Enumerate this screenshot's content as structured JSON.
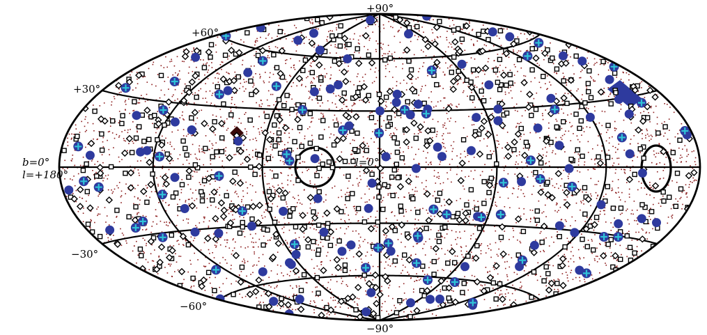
{
  "map": {
    "projection": "Hammer-Aitoff",
    "coordinate_system": "galactic",
    "latitude_labels": [
      "+90°",
      "+60°",
      "+30°",
      "−30°",
      "−60°",
      "−90°"
    ],
    "equator_label_b": "b=0°",
    "equator_label_l": "l=+180°",
    "center_label": "l=0°",
    "meridians_longitude_deg": [
      -180,
      -120,
      -60,
      0,
      60,
      120,
      180
    ],
    "parallels_latitude_deg": [
      -60,
      -30,
      0,
      30,
      60
    ],
    "colors": {
      "background_dots": "#8b1a1a",
      "grid": "#000000",
      "filled_marker": "#2e3a9e",
      "cross_marker": "#2fc4d8",
      "open_marker": "#000000"
    },
    "marker_types": [
      "small-red-dots",
      "open-squares",
      "open-diamonds",
      "filled-blue-circles",
      "blue-circles-with-cyan-cross"
    ]
  }
}
